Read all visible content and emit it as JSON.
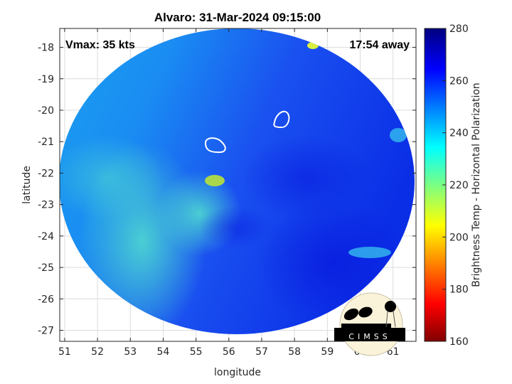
{
  "chart_data": {
    "type": "heatmap",
    "title": "Alvaro: 31-Mar-2024 09:15:00",
    "xlabel": "longitude",
    "ylabel": "latitude",
    "xlim": [
      50.85,
      61.7
    ],
    "ylim": [
      -27.35,
      -17.4
    ],
    "xticks": [
      "51",
      "52",
      "53",
      "54",
      "55",
      "56",
      "57",
      "58",
      "59",
      "60",
      "61"
    ],
    "yticks": [
      "-18",
      "-19",
      "-20",
      "-21",
      "-22",
      "-23",
      "-24",
      "-25",
      "-26",
      "-27"
    ],
    "grid": true,
    "annotations": {
      "vmax": "Vmax: 35 kts",
      "distance": "17:54 away"
    },
    "colorbar": {
      "label": "Brightness Temp - Horizontal Polarization",
      "range": [
        160,
        280
      ],
      "ticks": [
        "160",
        "180",
        "200",
        "220",
        "240",
        "260",
        "280"
      ],
      "colormap": "jet"
    },
    "contours": [
      {
        "color": "#ffffff",
        "center_lon": 55.4,
        "center_lat": -21.1
      },
      {
        "color": "#ffffff",
        "center_lon": 57.6,
        "center_lat": -20.3
      }
    ]
  },
  "logo": {
    "text": "CIMSS"
  }
}
